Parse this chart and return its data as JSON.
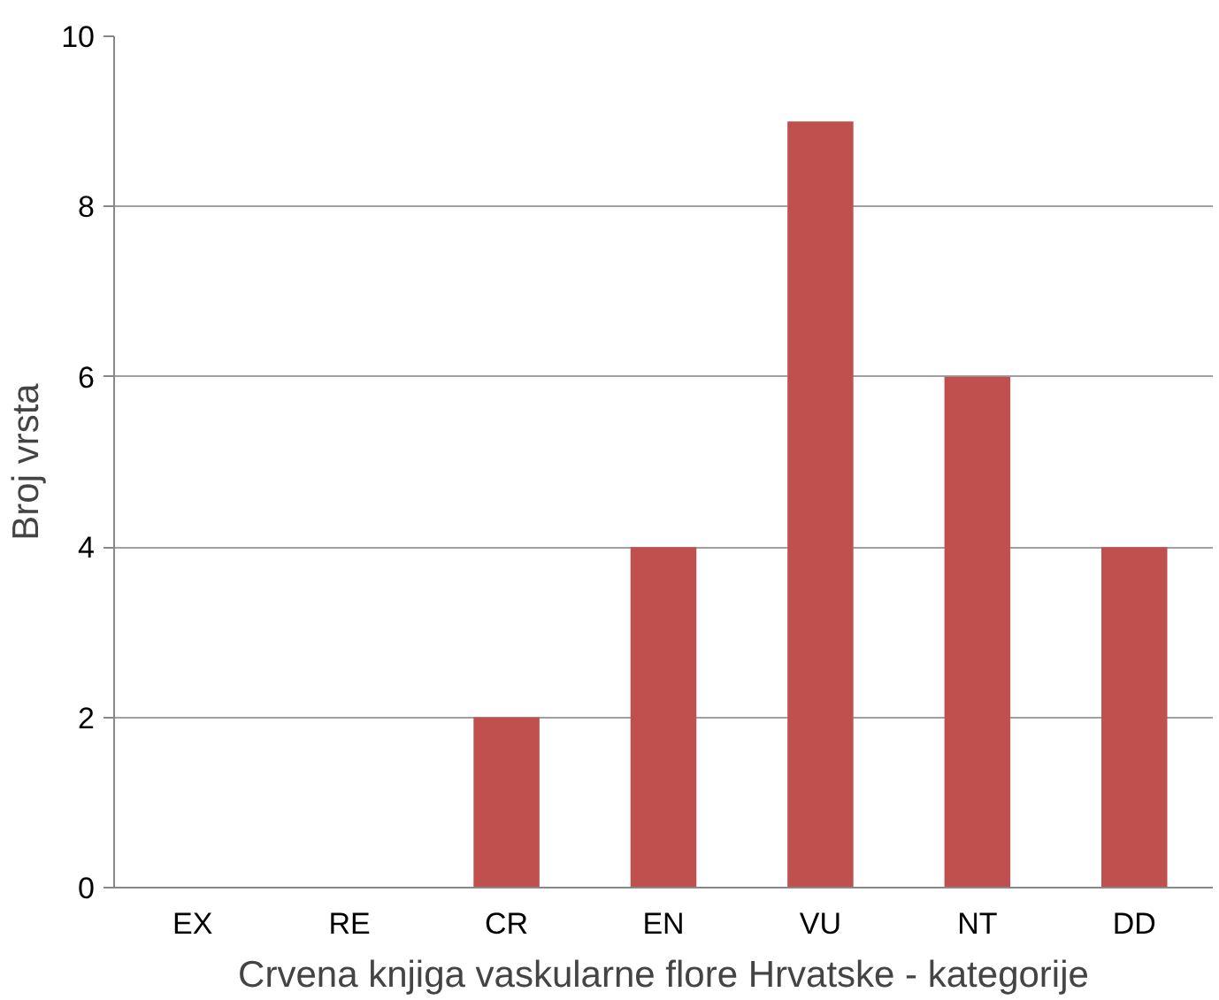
{
  "chart_data": {
    "type": "bar",
    "xlabel": "Crvena knjiga vaskularne flore Hrvatske - kategorije",
    "ylabel": "Broj vrsta",
    "categories": [
      "EX",
      "RE",
      "CR",
      "EN",
      "VU",
      "NT",
      "DD"
    ],
    "values": [
      0,
      0,
      2,
      4,
      9,
      6,
      4
    ],
    "color": "#c0504d",
    "ylim": [
      0,
      10
    ],
    "yticks": [
      0,
      2,
      4,
      6,
      8,
      10
    ],
    "grid": "y"
  }
}
